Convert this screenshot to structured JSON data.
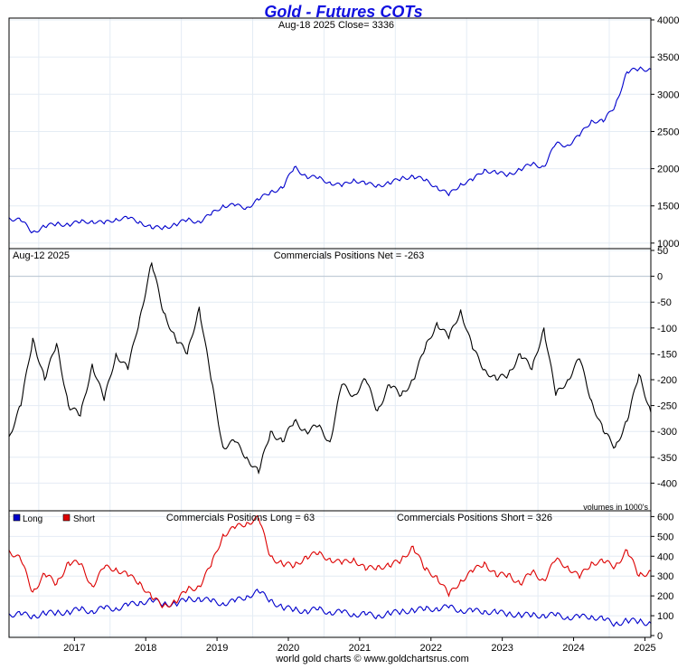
{
  "title": "Gold - Futures COTs",
  "footer": "world gold charts © www.goldchartsrus.com",
  "x_axis": {
    "tick_labels": [
      "2017",
      "2018",
      "2019",
      "2020",
      "2021",
      "2022",
      "2023",
      "2024",
      "2025"
    ]
  },
  "colors": {
    "title": "#1010e0",
    "price": "#0000cc",
    "net": "#000000",
    "long": "#0000cc",
    "short": "#dd0000",
    "grid": "#e4ecf4",
    "axis": "#000000"
  },
  "chart_data": [
    {
      "type": "line",
      "panel": "price",
      "subtitle": "Aug-18  2025   Close= 3336",
      "ylim": [
        950,
        4000
      ],
      "y_ticks": [
        1000,
        1500,
        2000,
        2500,
        3000,
        3500,
        4000
      ],
      "grid": true,
      "x": [
        "2016-08",
        "2016-10",
        "2016-12",
        "2017-02",
        "2017-04",
        "2017-06",
        "2017-08",
        "2017-10",
        "2017-12",
        "2018-02",
        "2018-04",
        "2018-06",
        "2018-08",
        "2018-10",
        "2018-12",
        "2019-02",
        "2019-04",
        "2019-06",
        "2019-08",
        "2019-10",
        "2019-12",
        "2020-02",
        "2020-04",
        "2020-06",
        "2020-08",
        "2020-10",
        "2020-12",
        "2021-02",
        "2021-04",
        "2021-06",
        "2021-08",
        "2021-10",
        "2021-12",
        "2022-02",
        "2022-04",
        "2022-06",
        "2022-08",
        "2022-10",
        "2022-12",
        "2023-02",
        "2023-04",
        "2023-06",
        "2023-08",
        "2023-10",
        "2023-12",
        "2024-02",
        "2024-04",
        "2024-06",
        "2024-08",
        "2024-10",
        "2024-12",
        "2025-02",
        "2025-04",
        "2025-06",
        "2025-08"
      ],
      "series": [
        {
          "values": [
            1340,
            1300,
            1150,
            1220,
            1260,
            1250,
            1280,
            1300,
            1260,
            1330,
            1330,
            1290,
            1200,
            1210,
            1250,
            1310,
            1290,
            1380,
            1510,
            1500,
            1480,
            1580,
            1690,
            1740,
            2020,
            1900,
            1870,
            1820,
            1760,
            1860,
            1790,
            1780,
            1800,
            1870,
            1900,
            1840,
            1760,
            1640,
            1800,
            1840,
            1990,
            1940,
            1920,
            1990,
            2060,
            2030,
            2330,
            2320,
            2440,
            2650,
            2630,
            2850,
            3300,
            3340,
            3336
          ]
        }
      ]
    },
    {
      "type": "line",
      "panel": "net",
      "date_label": "Aug-12  2025",
      "subtitle": "Commercials Positions Net = -263",
      "ylim": [
        -450,
        50
      ],
      "y_ticks": [
        50,
        0,
        -50,
        -100,
        -150,
        -200,
        -250,
        -300,
        -350,
        -400
      ],
      "note": "volumes in 1000's",
      "grid": true,
      "x": [
        "2016-08",
        "2016-10",
        "2016-12",
        "2017-02",
        "2017-04",
        "2017-06",
        "2017-08",
        "2017-10",
        "2017-12",
        "2018-02",
        "2018-04",
        "2018-06",
        "2018-08",
        "2018-10",
        "2018-12",
        "2019-02",
        "2019-04",
        "2019-06",
        "2019-08",
        "2019-10",
        "2019-12",
        "2020-02",
        "2020-04",
        "2020-06",
        "2020-08",
        "2020-10",
        "2020-12",
        "2021-02",
        "2021-04",
        "2021-06",
        "2021-08",
        "2021-10",
        "2021-12",
        "2022-02",
        "2022-04",
        "2022-06",
        "2022-08",
        "2022-10",
        "2022-12",
        "2023-02",
        "2023-04",
        "2023-06",
        "2023-08",
        "2023-10",
        "2023-12",
        "2024-02",
        "2024-04",
        "2024-06",
        "2024-08",
        "2024-10",
        "2024-12",
        "2025-02",
        "2025-04",
        "2025-06",
        "2025-08"
      ],
      "series": [
        {
          "values": [
            -310,
            -250,
            -120,
            -200,
            -130,
            -250,
            -270,
            -170,
            -240,
            -150,
            -180,
            -80,
            25,
            -70,
            -120,
            -150,
            -60,
            -200,
            -330,
            -320,
            -350,
            -380,
            -300,
            -320,
            -280,
            -300,
            -290,
            -320,
            -210,
            -230,
            -200,
            -260,
            -210,
            -230,
            -200,
            -140,
            -90,
            -120,
            -65,
            -140,
            -180,
            -200,
            -190,
            -150,
            -180,
            -100,
            -230,
            -200,
            -160,
            -240,
            -300,
            -330,
            -280,
            -190,
            -263
          ]
        }
      ]
    },
    {
      "type": "line",
      "panel": "long-short",
      "subtitle": "Commercials Positions Long = 63",
      "subtitle2": "Commercials Positions Short = 326",
      "ylim": [
        0,
        620
      ],
      "y_ticks": [
        0,
        100,
        200,
        300,
        400,
        500,
        600
      ],
      "legend": {
        "placement": "top-left",
        "entries": [
          "Long",
          "Short"
        ]
      },
      "grid": true,
      "x": [
        "2016-08",
        "2016-10",
        "2016-12",
        "2017-02",
        "2017-04",
        "2017-06",
        "2017-08",
        "2017-10",
        "2017-12",
        "2018-02",
        "2018-04",
        "2018-06",
        "2018-08",
        "2018-10",
        "2018-12",
        "2019-02",
        "2019-04",
        "2019-06",
        "2019-08",
        "2019-10",
        "2019-12",
        "2020-02",
        "2020-04",
        "2020-06",
        "2020-08",
        "2020-10",
        "2020-12",
        "2021-02",
        "2021-04",
        "2021-06",
        "2021-08",
        "2021-10",
        "2021-12",
        "2022-02",
        "2022-04",
        "2022-06",
        "2022-08",
        "2022-10",
        "2022-12",
        "2023-02",
        "2023-04",
        "2023-06",
        "2023-08",
        "2023-10",
        "2023-12",
        "2024-02",
        "2024-04",
        "2024-06",
        "2024-08",
        "2024-10",
        "2024-12",
        "2025-02",
        "2025-04",
        "2025-06",
        "2025-08"
      ],
      "series": [
        {
          "name": "Long",
          "values": [
            110,
            105,
            100,
            110,
            115,
            120,
            130,
            125,
            135,
            140,
            150,
            170,
            175,
            160,
            160,
            180,
            190,
            170,
            165,
            170,
            200,
            220,
            180,
            140,
            130,
            125,
            130,
            120,
            115,
            110,
            105,
            100,
            110,
            120,
            130,
            130,
            140,
            140,
            130,
            120,
            125,
            115,
            110,
            105,
            100,
            105,
            100,
            95,
            90,
            100,
            80,
            60,
            75,
            70,
            63
          ]
        },
        {
          "name": "Short",
          "values": [
            430,
            380,
            220,
            310,
            260,
            370,
            360,
            250,
            340,
            340,
            300,
            270,
            190,
            150,
            170,
            230,
            250,
            350,
            510,
            540,
            570,
            590,
            400,
            360,
            350,
            400,
            410,
            390,
            360,
            390,
            330,
            350,
            350,
            380,
            450,
            330,
            300,
            200,
            280,
            320,
            370,
            300,
            310,
            260,
            320,
            280,
            380,
            350,
            290,
            370,
            370,
            350,
            430,
            300,
            326
          ]
        }
      ]
    }
  ]
}
